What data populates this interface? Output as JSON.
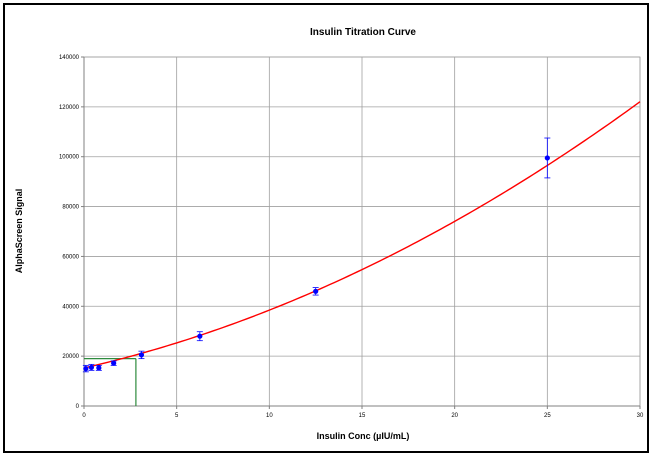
{
  "chart_data": {
    "type": "scatter",
    "title": "Insulin Titration Curve",
    "xlabel": "Insulin Conc (µIU/mL)",
    "ylabel": "AlphaScreen Signal",
    "xlim": [
      0,
      30
    ],
    "ylim": [
      0,
      140000
    ],
    "x_ticks": [
      0,
      5,
      10,
      15,
      20,
      25,
      30
    ],
    "y_ticks": [
      0,
      20000,
      40000,
      60000,
      80000,
      100000,
      120000,
      140000
    ],
    "grid": true,
    "series": [
      {
        "type": "scatter",
        "x": [
          0.1,
          0.4,
          0.8,
          1.6,
          3.1,
          6.25,
          12.5,
          25
        ],
        "y": [
          15000,
          15500,
          15300,
          17200,
          20500,
          28000,
          46000,
          99500
        ],
        "error": [
          1300,
          1200,
          1000,
          900,
          1500,
          1800,
          1500,
          8000
        ],
        "color": "#0000ff"
      },
      {
        "type": "line",
        "fit": "quadratic",
        "coefficients": [
          15260,
          1700,
          62
        ],
        "x_range": [
          0,
          30
        ],
        "color": "#ff0000"
      }
    ],
    "annotation": {
      "type": "interpolation",
      "x": 2.8,
      "y": 19000,
      "color": "#2e8b3e"
    }
  }
}
